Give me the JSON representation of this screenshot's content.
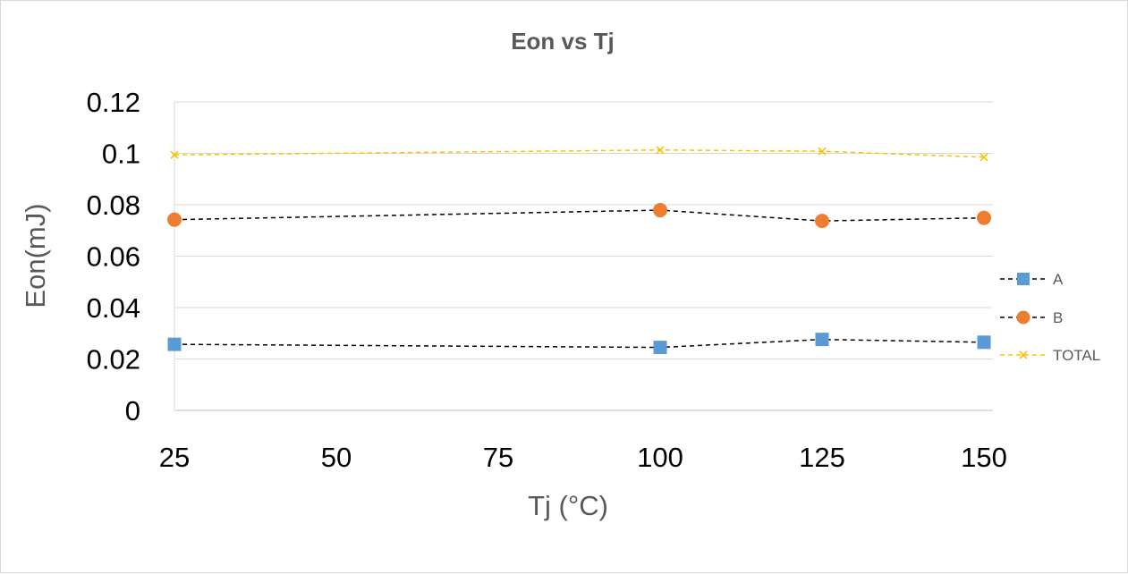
{
  "chart_data": {
    "type": "line",
    "title": "Eon vs Tj",
    "xlabel": "Tj (°C)",
    "ylabel": "Eon(mJ)",
    "x_ticks": [
      "25",
      "50",
      "75",
      "100",
      "125",
      "150"
    ],
    "y_ticks": [
      "0",
      "0.02",
      "0.04",
      "0.06",
      "0.08",
      "0.1",
      "0.12"
    ],
    "xlim": [
      25,
      150
    ],
    "ylim": [
      0,
      0.12
    ],
    "grid": "horizontal",
    "legend_position": "right",
    "x": [
      25,
      100,
      125,
      150
    ],
    "series": [
      {
        "name": "A",
        "values": [
          0.0257,
          0.0245,
          0.0276,
          0.0265
        ],
        "color": "#5b9bd5",
        "line_color": "#000000",
        "marker": "square",
        "line_style": "dashed"
      },
      {
        "name": "B",
        "values": [
          0.0742,
          0.0779,
          0.0737,
          0.0749
        ],
        "color": "#ed7d31",
        "line_color": "#000000",
        "marker": "circle",
        "line_style": "dashed"
      },
      {
        "name": "TOTAL",
        "values": [
          0.0994,
          0.1013,
          0.1008,
          0.0985
        ],
        "color": "#ffc000",
        "line_color": "#ffc000",
        "marker": "x",
        "line_style": "dashed"
      }
    ]
  }
}
